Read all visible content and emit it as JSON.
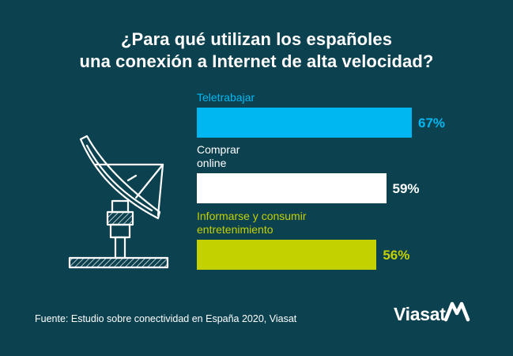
{
  "title": {
    "line1": "¿Para qué utilizan los españoles",
    "line2": "una conexión a Internet de alta velocidad?"
  },
  "chart_data": {
    "type": "bar",
    "orientation": "horizontal",
    "categories": [
      "Teletrabajar",
      "Comprar online",
      "Informarse y consumir entretenimiento"
    ],
    "category_lines": [
      [
        "Teletrabajar"
      ],
      [
        "Comprar",
        "online"
      ],
      [
        "Informarse y consumir",
        "entretenimiento"
      ]
    ],
    "values": [
      67,
      59,
      56
    ],
    "value_labels": [
      "67%",
      "59%",
      "56%"
    ],
    "colors": [
      "#00b7f1",
      "#ffffff",
      "#c4d100"
    ],
    "label_colors": [
      "#00b7f1",
      "#ffffff",
      "#c4d100"
    ],
    "pct_colors": [
      "#00b7f1",
      "#ffffff",
      "#c4d100"
    ]
  },
  "source": "Fuente: Estudio sobre conectividad en España 2020, Viasat",
  "logo": {
    "text": "Viasat",
    "icon": "viasat-wave-icon"
  },
  "illustration": {
    "icon": "satellite-dish-icon"
  }
}
